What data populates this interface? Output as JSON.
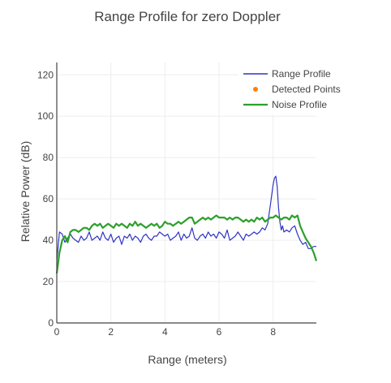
{
  "chart_data": {
    "type": "line",
    "title": "Range Profile for zero Doppler",
    "xlabel": "Range (meters)",
    "ylabel": "Relative Power (dB)",
    "xlim": [
      0,
      9.6
    ],
    "ylim": [
      0,
      126
    ],
    "xticks": [
      0,
      2,
      4,
      6,
      8
    ],
    "yticks": [
      0,
      20,
      40,
      60,
      80,
      100,
      120
    ],
    "grid": true,
    "legend_position": "top-right",
    "series": [
      {
        "name": "Range Profile",
        "color": "#2f35c4",
        "marker": "line",
        "x": [
          0,
          0.1,
          0.2,
          0.3,
          0.4,
          0.5,
          0.6,
          0.7,
          0.8,
          0.9,
          1.0,
          1.1,
          1.2,
          1.3,
          1.4,
          1.5,
          1.6,
          1.7,
          1.8,
          1.9,
          2.0,
          2.1,
          2.2,
          2.3,
          2.4,
          2.5,
          2.6,
          2.7,
          2.8,
          2.9,
          3.0,
          3.1,
          3.2,
          3.3,
          3.4,
          3.5,
          3.6,
          3.7,
          3.8,
          3.9,
          4.0,
          4.1,
          4.2,
          4.3,
          4.4,
          4.5,
          4.6,
          4.7,
          4.8,
          4.9,
          5.0,
          5.1,
          5.2,
          5.3,
          5.4,
          5.5,
          5.6,
          5.7,
          5.8,
          5.9,
          6.0,
          6.1,
          6.2,
          6.3,
          6.4,
          6.5,
          6.6,
          6.7,
          6.8,
          6.9,
          7.0,
          7.1,
          7.2,
          7.3,
          7.4,
          7.5,
          7.6,
          7.7,
          7.8,
          7.9,
          7.95,
          8.0,
          8.05,
          8.1,
          8.15,
          8.2,
          8.25,
          8.3,
          8.35,
          8.4,
          8.5,
          8.6,
          8.7,
          8.8,
          8.9,
          9.0,
          9.1,
          9.2,
          9.3,
          9.4,
          9.5,
          9.6
        ],
        "y": [
          30,
          44,
          43,
          39,
          41,
          43,
          41,
          40,
          39,
          42,
          40,
          41,
          44,
          40,
          41,
          42,
          40,
          44,
          41,
          40,
          43,
          39,
          41,
          42,
          38,
          42,
          41,
          43,
          40,
          42,
          41,
          39,
          42,
          43,
          41,
          40,
          42,
          42,
          44,
          43,
          42,
          43,
          40,
          41,
          42,
          44,
          40,
          43,
          41,
          42,
          46,
          41,
          40,
          42,
          43,
          41,
          44,
          42,
          43,
          41,
          44,
          43,
          41,
          45,
          40,
          41,
          42,
          44,
          42,
          40,
          43,
          42,
          43,
          44,
          43,
          44,
          46,
          45,
          48,
          57,
          62,
          67,
          70,
          71,
          66,
          56,
          49,
          45,
          47,
          44,
          45,
          44,
          46,
          47,
          43,
          40,
          38,
          39,
          36,
          36,
          37,
          37
        ]
      },
      {
        "name": "Detected Points",
        "color": "#ff7f0e",
        "marker": "dot",
        "x": [],
        "y": []
      },
      {
        "name": "Noise Profile",
        "color": "#2ca02c",
        "marker": "line",
        "x": [
          0,
          0.1,
          0.2,
          0.3,
          0.4,
          0.5,
          0.6,
          0.7,
          0.8,
          0.9,
          1.0,
          1.1,
          1.2,
          1.3,
          1.4,
          1.5,
          1.6,
          1.7,
          1.8,
          1.9,
          2.0,
          2.1,
          2.2,
          2.3,
          2.4,
          2.5,
          2.6,
          2.7,
          2.8,
          2.9,
          3.0,
          3.1,
          3.2,
          3.3,
          3.4,
          3.5,
          3.6,
          3.7,
          3.8,
          3.9,
          4.0,
          4.1,
          4.2,
          4.3,
          4.4,
          4.5,
          4.6,
          4.7,
          4.8,
          4.9,
          5.0,
          5.1,
          5.2,
          5.3,
          5.4,
          5.5,
          5.6,
          5.7,
          5.8,
          5.9,
          6.0,
          6.1,
          6.2,
          6.3,
          6.4,
          6.5,
          6.6,
          6.7,
          6.8,
          6.9,
          7.0,
          7.1,
          7.2,
          7.3,
          7.4,
          7.5,
          7.6,
          7.7,
          7.8,
          7.9,
          8.0,
          8.1,
          8.2,
          8.3,
          8.4,
          8.5,
          8.6,
          8.7,
          8.8,
          8.9,
          9.0,
          9.1,
          9.2,
          9.3,
          9.4,
          9.5,
          9.6
        ],
        "y": [
          24,
          34,
          40,
          42,
          39,
          44,
          45,
          45,
          44,
          45,
          46,
          46,
          45,
          47,
          48,
          47,
          48,
          46,
          47,
          48,
          47,
          46,
          48,
          47,
          48,
          47,
          46,
          48,
          47,
          49,
          47,
          48,
          47,
          46,
          47,
          48,
          47,
          48,
          46,
          47,
          49,
          48,
          48,
          47,
          48,
          49,
          48,
          49,
          50,
          51,
          51,
          48,
          49,
          50,
          51,
          50,
          51,
          50,
          51,
          52,
          51,
          51,
          51,
          50,
          51,
          50,
          51,
          51,
          50,
          49,
          50,
          49,
          50,
          49,
          51,
          50,
          51,
          49,
          50,
          51,
          51,
          52,
          51,
          50,
          51,
          51,
          50,
          52,
          51,
          52,
          47,
          44,
          41,
          39,
          37,
          34,
          30
        ]
      }
    ]
  }
}
